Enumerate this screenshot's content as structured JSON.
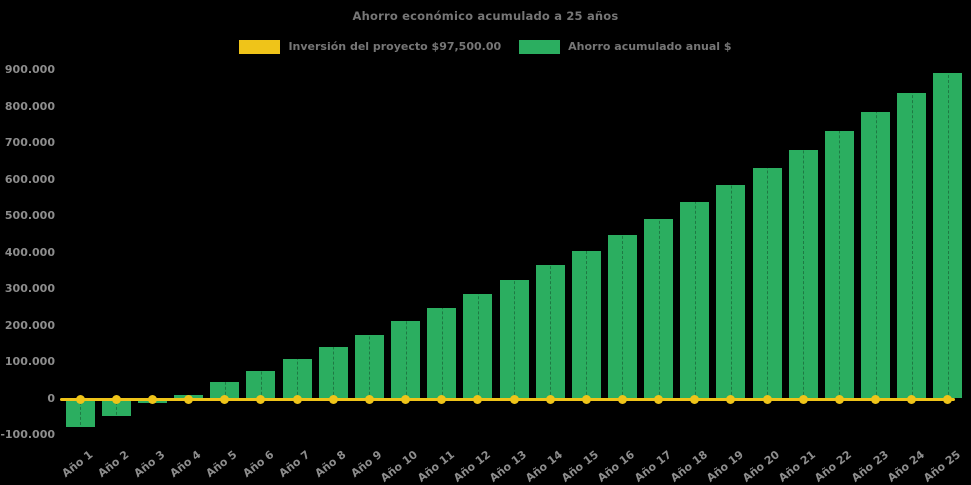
{
  "chart_data": {
    "type": "bar",
    "title": "Ahorro económico acumulado a 25 años",
    "categories": [
      "Año 1",
      "Año 2",
      "Año 3",
      "Año 4",
      "Año 5",
      "Año 6",
      "Año 7",
      "Año 8",
      "Año 9",
      "Año 10",
      "Año 11",
      "Año 12",
      "Año 13",
      "Año 14",
      "Año 15",
      "Año 16",
      "Año 17",
      "Año 18",
      "Año 19",
      "Año 20",
      "Año 21",
      "Año 22",
      "Año 23",
      "Año 24",
      "Año 25"
    ],
    "series": [
      {
        "name": "Ahorro acumulado anual $",
        "type": "bar",
        "color": "#2bae60",
        "values": [
          -78000,
          -49000,
          -13000,
          10000,
          45000,
          74000,
          107000,
          141000,
          175000,
          211000,
          248000,
          285000,
          325000,
          366000,
          404000,
          449000,
          493000,
          538000,
          584000,
          631000,
          680000,
          732000,
          784000,
          838000,
          891000
        ]
      },
      {
        "name": "Inversión del proyecto $97,500.00",
        "type": "line",
        "color": "#efc419",
        "marker": "circle",
        "values": [
          0,
          0,
          0,
          0,
          0,
          0,
          0,
          0,
          0,
          0,
          0,
          0,
          0,
          0,
          0,
          0,
          0,
          0,
          0,
          0,
          0,
          0,
          0,
          0,
          0
        ]
      }
    ],
    "ylim": [
      -100000,
      900000
    ],
    "ytick_interval": 100000,
    "yticks": [
      {
        "value": 900000,
        "label": "900.000"
      },
      {
        "value": 800000,
        "label": "800.000"
      },
      {
        "value": 700000,
        "label": "700.000"
      },
      {
        "value": 600000,
        "label": "600.000"
      },
      {
        "value": 500000,
        "label": "500.000"
      },
      {
        "value": 400000,
        "label": "400.000"
      },
      {
        "value": 300000,
        "label": "300.000"
      },
      {
        "value": 200000,
        "label": "200.000"
      },
      {
        "value": 100000,
        "label": "100.000"
      },
      {
        "value": 0,
        "label": "0"
      },
      {
        "value": -100000,
        "label": "-100.000"
      }
    ],
    "grid": false,
    "legend_position": "top",
    "background": "#000000",
    "text_color_title": "#767676",
    "text_color_axis": "#8d8d8d"
  }
}
